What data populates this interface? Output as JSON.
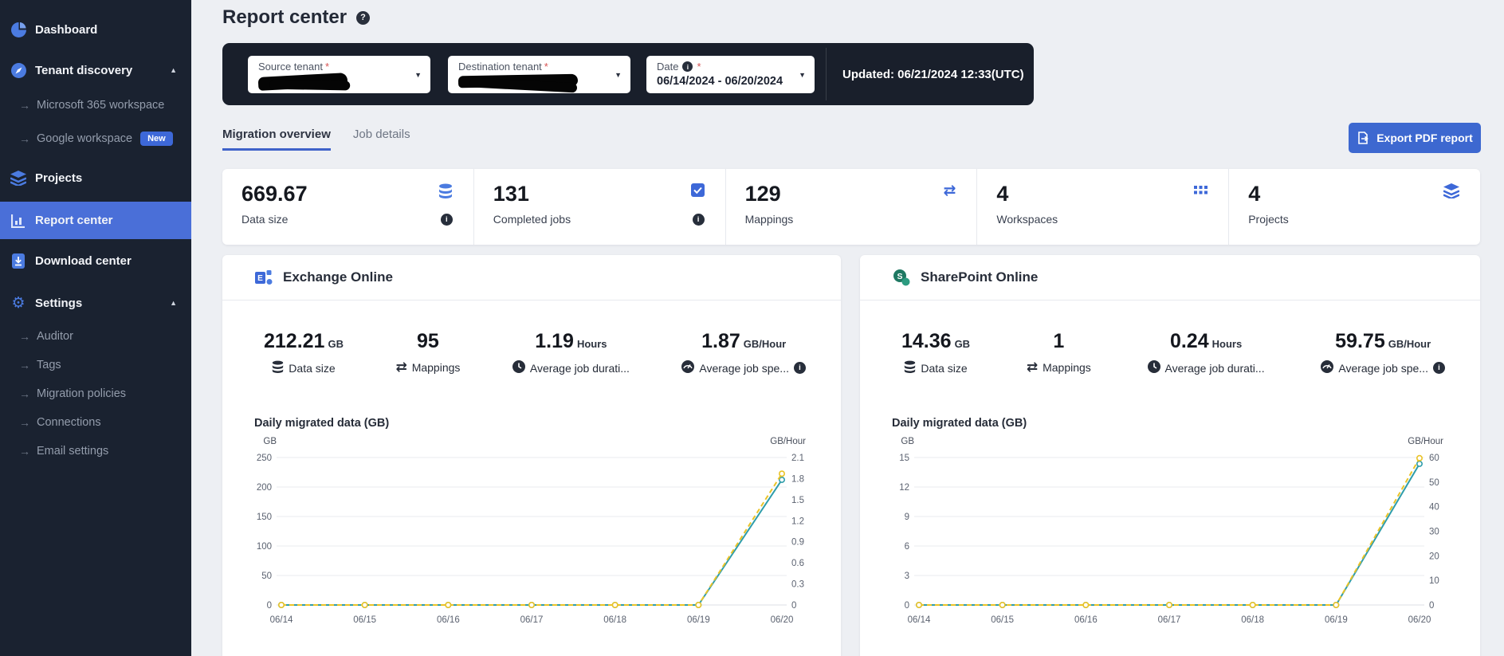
{
  "sidebar": {
    "items": [
      {
        "label": "Dashboard"
      },
      {
        "label": "Tenant discovery"
      },
      {
        "label": "Microsoft 365 workspace"
      },
      {
        "label": "Google workspace",
        "badge": "New"
      },
      {
        "label": "Projects"
      },
      {
        "label": "Report center"
      },
      {
        "label": "Download center"
      },
      {
        "label": "Settings"
      },
      {
        "label": "Auditor"
      },
      {
        "label": "Tags"
      },
      {
        "label": "Migration policies"
      },
      {
        "label": "Connections"
      },
      {
        "label": "Email settings"
      }
    ]
  },
  "header": {
    "title": "Report center"
  },
  "filters": {
    "source_tenant_label": "Source tenant",
    "destination_tenant_label": "Destination tenant",
    "date_label": "Date",
    "required_mark": "*",
    "date_value": "06/14/2024 - 06/20/2024",
    "updated_text": "Updated: 06/21/2024 12:33(UTC)"
  },
  "tabs": {
    "migration_overview": "Migration overview",
    "job_details": "Job details"
  },
  "export_button": {
    "label": "Export PDF report"
  },
  "summary_stats": [
    {
      "value": "669.67",
      "label": "Data size",
      "icon": "database-icon",
      "has_info": true
    },
    {
      "value": "131",
      "label": "Completed jobs",
      "icon": "checkbox-icon",
      "has_info": true
    },
    {
      "value": "129",
      "label": "Mappings",
      "icon": "swap-arrows-icon",
      "has_info": false
    },
    {
      "value": "4",
      "label": "Workspaces",
      "icon": "grid-icon",
      "has_info": false
    },
    {
      "value": "4",
      "label": "Projects",
      "icon": "layers-icon",
      "has_info": false
    }
  ],
  "cards": [
    {
      "title": "Exchange Online",
      "stats": [
        {
          "value": "212.21",
          "unit": "GB",
          "label": "Data size",
          "icon": "database-icon"
        },
        {
          "value": "95",
          "unit": "",
          "label": "Mappings",
          "icon": "swap-arrows-icon"
        },
        {
          "value": "1.19",
          "unit": "Hours",
          "label": "Average job durati...",
          "icon": "clock-icon"
        },
        {
          "value": "1.87",
          "unit": "GB/Hour",
          "label": "Average job spe...",
          "icon": "speedometer-icon",
          "has_info": true
        }
      ]
    },
    {
      "title": "SharePoint Online",
      "stats": [
        {
          "value": "14.36",
          "unit": "GB",
          "label": "Data size",
          "icon": "database-icon"
        },
        {
          "value": "1",
          "unit": "",
          "label": "Mappings",
          "icon": "swap-arrows-icon"
        },
        {
          "value": "0.24",
          "unit": "Hours",
          "label": "Average job durati...",
          "icon": "clock-icon"
        },
        {
          "value": "59.75",
          "unit": "GB/Hour",
          "label": "Average job spe...",
          "icon": "speedometer-icon",
          "has_info": true
        }
      ]
    }
  ],
  "chart_data": [
    {
      "type": "line",
      "title": "Daily migrated data (GB)",
      "categories": [
        "06/14",
        "06/15",
        "06/16",
        "06/17",
        "06/18",
        "06/19",
        "06/20"
      ],
      "series": [
        {
          "name": "GB",
          "axis": "left",
          "style": "solid",
          "color": "#2f9daa",
          "values": [
            0,
            0,
            0,
            0,
            0,
            0,
            212.21
          ]
        },
        {
          "name": "GB/Hour",
          "axis": "right",
          "style": "dashed",
          "color": "#eac328",
          "values": [
            0,
            0,
            0,
            0,
            0,
            0,
            1.87
          ]
        }
      ],
      "left_axis": {
        "label": "GB",
        "min": 0,
        "max": 250,
        "ticks": [
          0,
          50,
          100,
          150,
          200,
          250
        ]
      },
      "right_axis": {
        "label": "GB/Hour",
        "min": 0,
        "max": 2.1,
        "ticks": [
          0,
          0.3,
          0.6,
          0.9,
          1.2,
          1.5,
          1.8,
          2.1
        ]
      },
      "grid": "horizontal",
      "legend": "none"
    },
    {
      "type": "line",
      "title": "Daily migrated data (GB)",
      "categories": [
        "06/14",
        "06/15",
        "06/16",
        "06/17",
        "06/18",
        "06/19",
        "06/20"
      ],
      "series": [
        {
          "name": "GB",
          "axis": "left",
          "style": "solid",
          "color": "#2f9daa",
          "values": [
            0,
            0,
            0,
            0,
            0,
            0,
            14.36
          ]
        },
        {
          "name": "GB/Hour",
          "axis": "right",
          "style": "dashed",
          "color": "#eac328",
          "values": [
            0,
            0,
            0,
            0,
            0,
            0,
            59.75
          ]
        }
      ],
      "left_axis": {
        "label": "GB",
        "min": 0,
        "max": 15,
        "ticks": [
          0,
          3,
          6,
          9,
          12,
          15
        ]
      },
      "right_axis": {
        "label": "GB/Hour",
        "min": 0,
        "max": 60,
        "ticks": [
          0,
          10,
          20,
          30,
          40,
          50,
          60
        ]
      },
      "grid": "horizontal",
      "legend": "none"
    }
  ]
}
